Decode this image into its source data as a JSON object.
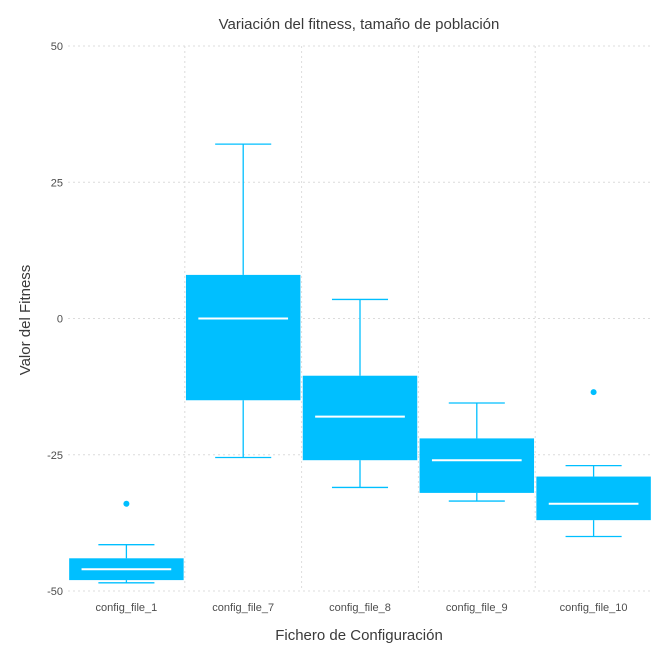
{
  "chart_data": {
    "type": "box",
    "title": "Variación del fitness, tamaño de población",
    "xlabel": "Fichero de Configuración",
    "ylabel": "Valor del Fitness",
    "ylim": [
      -50,
      50
    ],
    "yticks": [
      -50,
      -25,
      0,
      25,
      50
    ],
    "grid": true,
    "color": "#00bfff",
    "median_color": "#ffffff",
    "categories": [
      "config_file_1",
      "config_file_7",
      "config_file_8",
      "config_file_9",
      "config_file_10"
    ],
    "boxes": [
      {
        "category": "config_file_1",
        "whisker_low": -48.5,
        "q1": -48,
        "median": -46,
        "q3": -44,
        "whisker_high": -41.5,
        "outliers": [
          -34
        ]
      },
      {
        "category": "config_file_7",
        "whisker_low": -25.5,
        "q1": -15,
        "median": 0,
        "q3": 8,
        "whisker_high": 32,
        "outliers": []
      },
      {
        "category": "config_file_8",
        "whisker_low": -31,
        "q1": -26,
        "median": -18,
        "q3": -10.5,
        "whisker_high": 3.5,
        "outliers": []
      },
      {
        "category": "config_file_9",
        "whisker_low": -33.5,
        "q1": -32,
        "median": -26,
        "q3": -22,
        "whisker_high": -15.5,
        "outliers": []
      },
      {
        "category": "config_file_10",
        "whisker_low": -40,
        "q1": -37,
        "median": -34,
        "q3": -29,
        "whisker_high": -27,
        "outliers": [
          -13.5
        ]
      }
    ]
  }
}
